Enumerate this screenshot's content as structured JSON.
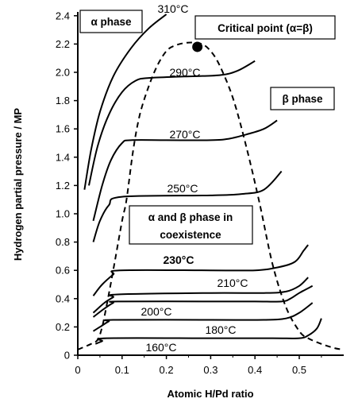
{
  "chart_data": {
    "type": "line",
    "xlabel": "Atomic H/Pd ratio",
    "ylabel": "Hydrogen partial pressure / MP",
    "xlim": [
      0,
      0.6
    ],
    "ylim": [
      0,
      2.45
    ],
    "x_ticks": [
      "0",
      "0.1",
      "0.2",
      "0.3",
      "0.4",
      "0.5"
    ],
    "x_tick_values": [
      0,
      0.1,
      0.2,
      0.3,
      0.4,
      0.5
    ],
    "y_ticks": [
      "0",
      "0.2",
      "0.4",
      "0.6",
      "0.8",
      "1.0",
      "1.2",
      "1.4",
      "1.6",
      "1.8",
      "2.0",
      "2.2",
      "2.4"
    ],
    "y_tick_values": [
      0,
      0.2,
      0.4,
      0.6,
      0.8,
      1.0,
      1.2,
      1.4,
      1.6,
      1.8,
      2.0,
      2.2,
      2.4
    ],
    "grid": false,
    "series": [
      {
        "name": "310°C",
        "points": [
          [
            0.015,
            1.17
          ],
          [
            0.03,
            1.45
          ],
          [
            0.05,
            1.72
          ],
          [
            0.08,
            1.97
          ],
          [
            0.12,
            2.17
          ],
          [
            0.16,
            2.31
          ],
          [
            0.2,
            2.41
          ]
        ]
      },
      {
        "name": "290°C",
        "points": [
          [
            0.025,
            1.2
          ],
          [
            0.045,
            1.48
          ],
          [
            0.07,
            1.7
          ],
          [
            0.1,
            1.86
          ],
          [
            0.13,
            1.94
          ],
          [
            0.16,
            1.96
          ],
          [
            0.24,
            1.97
          ],
          [
            0.32,
            1.98
          ],
          [
            0.36,
            2.01
          ],
          [
            0.4,
            2.08
          ]
        ]
      },
      {
        "name": "270°C",
        "points": [
          [
            0.035,
            0.95
          ],
          [
            0.055,
            1.2
          ],
          [
            0.075,
            1.38
          ],
          [
            0.1,
            1.5
          ],
          [
            0.12,
            1.52
          ],
          [
            0.2,
            1.52
          ],
          [
            0.3,
            1.52
          ],
          [
            0.34,
            1.53
          ],
          [
            0.38,
            1.56
          ],
          [
            0.42,
            1.6
          ],
          [
            0.45,
            1.66
          ]
        ]
      },
      {
        "name": "250°C",
        "points": [
          [
            0.035,
            0.8
          ],
          [
            0.05,
            0.95
          ],
          [
            0.07,
            1.06
          ],
          [
            0.1,
            1.12
          ],
          [
            0.3,
            1.13
          ],
          [
            0.37,
            1.14
          ],
          [
            0.42,
            1.17
          ],
          [
            0.46,
            1.3
          ]
        ]
      },
      {
        "name": "230°C",
        "points": [
          [
            0.035,
            0.42
          ],
          [
            0.055,
            0.5
          ],
          [
            0.08,
            0.57
          ],
          [
            0.095,
            0.6
          ],
          [
            0.3,
            0.6
          ],
          [
            0.4,
            0.6
          ],
          [
            0.45,
            0.62
          ],
          [
            0.49,
            0.66
          ],
          [
            0.51,
            0.74
          ],
          [
            0.52,
            0.78
          ]
        ]
      },
      {
        "name": "210°C",
        "points": [
          [
            0.035,
            0.3
          ],
          [
            0.06,
            0.37
          ],
          [
            0.08,
            0.41
          ],
          [
            0.09,
            0.43
          ],
          [
            0.3,
            0.44
          ],
          [
            0.42,
            0.44
          ],
          [
            0.47,
            0.45
          ],
          [
            0.5,
            0.49
          ],
          [
            0.52,
            0.55
          ]
        ]
      },
      {
        "name": "200°C",
        "points": [
          [
            0.035,
            0.27
          ],
          [
            0.06,
            0.33
          ],
          [
            0.08,
            0.37
          ],
          [
            0.09,
            0.38
          ],
          [
            0.3,
            0.38
          ],
          [
            0.4,
            0.38
          ],
          [
            0.46,
            0.38
          ],
          [
            0.48,
            0.4
          ],
          [
            0.5,
            0.44
          ],
          [
            0.53,
            0.49
          ]
        ]
      },
      {
        "name": "180°C",
        "points": [
          [
            0.035,
            0.17
          ],
          [
            0.055,
            0.21
          ],
          [
            0.07,
            0.24
          ],
          [
            0.08,
            0.25
          ],
          [
            0.3,
            0.25
          ],
          [
            0.42,
            0.25
          ],
          [
            0.47,
            0.26
          ],
          [
            0.5,
            0.3
          ],
          [
            0.53,
            0.37
          ]
        ]
      },
      {
        "name": "160°C",
        "points": [
          [
            0.04,
            0.08
          ],
          [
            0.055,
            0.1
          ],
          [
            0.065,
            0.12
          ],
          [
            0.3,
            0.12
          ],
          [
            0.44,
            0.12
          ],
          [
            0.5,
            0.12
          ],
          [
            0.52,
            0.14
          ],
          [
            0.54,
            0.19
          ],
          [
            0.55,
            0.26
          ]
        ]
      }
    ],
    "dashed_curve": {
      "points": [
        [
          0.0,
          0.04
        ],
        [
          0.03,
          0.08
        ],
        [
          0.045,
          0.11
        ],
        [
          0.055,
          0.2
        ],
        [
          0.065,
          0.35
        ],
        [
          0.08,
          0.6
        ],
        [
          0.1,
          0.95
        ],
        [
          0.11,
          1.1
        ],
        [
          0.125,
          1.45
        ],
        [
          0.14,
          1.7
        ],
        [
          0.16,
          1.9
        ],
        [
          0.18,
          2.05
        ],
        [
          0.2,
          2.15
        ],
        [
          0.22,
          2.19
        ],
        [
          0.25,
          2.21
        ],
        [
          0.28,
          2.2
        ],
        [
          0.3,
          2.15
        ],
        [
          0.32,
          2.05
        ],
        [
          0.35,
          1.82
        ],
        [
          0.38,
          1.48
        ],
        [
          0.41,
          1.08
        ],
        [
          0.44,
          0.64
        ],
        [
          0.47,
          0.34
        ],
        [
          0.5,
          0.17
        ],
        [
          0.52,
          0.12
        ],
        [
          0.55,
          0.08
        ],
        [
          0.58,
          0.05
        ],
        [
          0.6,
          0.04
        ]
      ]
    },
    "critical_point": {
      "x": 0.27,
      "y": 2.18
    },
    "annotations": {
      "alpha_phase": "α phase",
      "beta_phase": "β phase",
      "critical_point": "Critical point (α=β)",
      "coexistence_line1": "α and β phase in",
      "coexistence_line2": "coexistence"
    }
  }
}
